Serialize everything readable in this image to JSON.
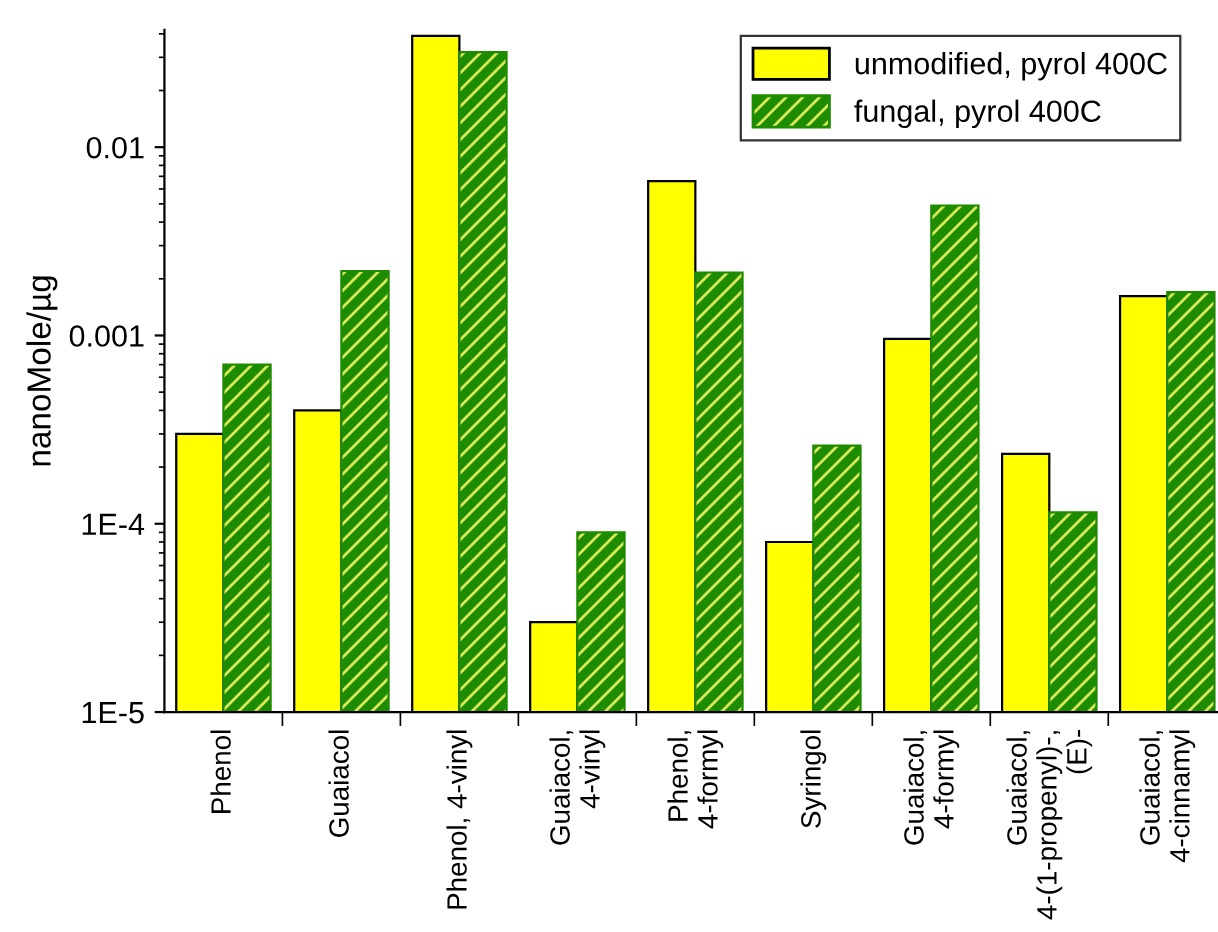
{
  "chart_data": {
    "type": "bar",
    "ylabel": "nanoMole/µg",
    "log": true,
    "categories": [
      "Phenol",
      "Guaiacol",
      "Phenol, 4-vinyl",
      "Guaiacol,\n4-vinyl",
      "Phenol,\n4-formyl",
      "Syringol",
      "Guaiacol,\n4-formyl",
      "Guaiacol,\n4-(1-propenyl)-,\n(E)-",
      "Guaiacol,\n4-cinnamyl"
    ],
    "series": [
      {
        "name": "unmodified, pyrol 400C",
        "color": "#ffff00",
        "values": [
          0.0003,
          0.0004,
          0.039,
          3e-05,
          0.0066,
          8e-05,
          0.00096,
          0.000235,
          0.00162
        ]
      },
      {
        "name": "fungal, pyrol 400C",
        "color": "#1e8c00",
        "values": [
          0.0007,
          0.0022,
          0.032,
          9e-05,
          0.00216,
          0.00026,
          0.0049,
          0.000115,
          0.0017
        ]
      }
    ],
    "ylim": [
      1e-05,
      0.042
    ],
    "yticks": [
      {
        "value": 1e-05,
        "label": "1E-5"
      },
      {
        "value": 0.0001,
        "label": "1E-4"
      },
      {
        "value": 0.001,
        "label": "0.001"
      },
      {
        "value": 0.01,
        "label": "0.01"
      }
    ],
    "legend": "top right",
    "grid": false
  }
}
